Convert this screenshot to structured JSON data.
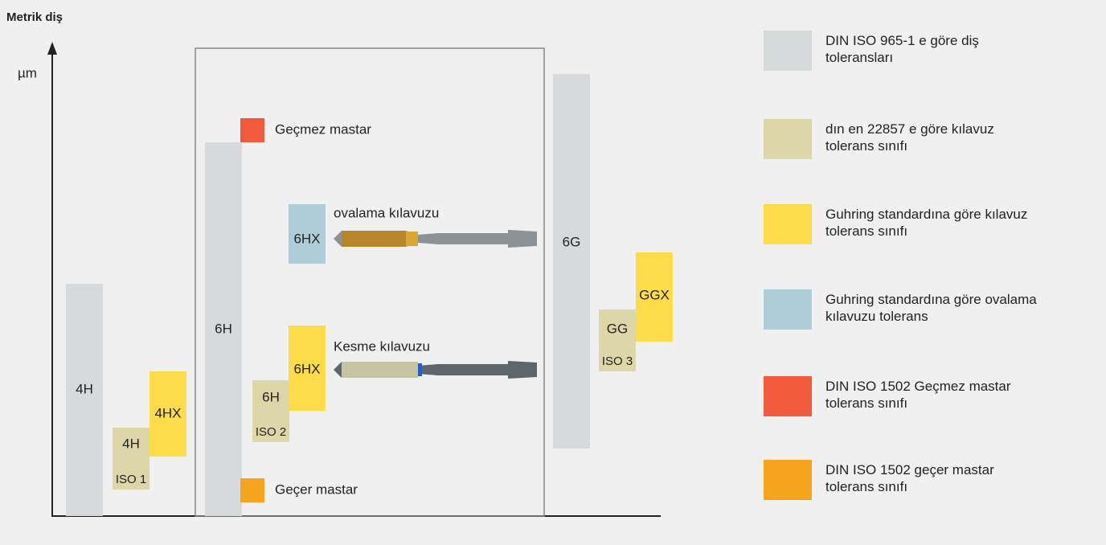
{
  "header": {
    "title": "Metrik diş"
  },
  "axis": {
    "unit": "µm"
  },
  "boxes": [
    {
      "label": "4H",
      "kind": "din"
    },
    {
      "label": "4H",
      "sublabel": "ISO 1",
      "kind": "tap"
    },
    {
      "label": "4HX",
      "kind": "guhring"
    },
    {
      "label": "6H",
      "kind": "din"
    },
    {
      "label": "6HX",
      "kind": "roll"
    },
    {
      "label": "6H",
      "sublabel": "ISO 2",
      "kind": "tap"
    },
    {
      "label": "6HX",
      "kind": "guhring"
    },
    {
      "label": "6G",
      "kind": "din"
    },
    {
      "label": "GG",
      "sublabel": "ISO 3",
      "kind": "tap"
    },
    {
      "label": "GGX",
      "kind": "guhring"
    }
  ],
  "gauges": [
    {
      "label": "Geçmez mastar",
      "kind": "nogo"
    },
    {
      "label": "Geçer mastar",
      "kind": "go"
    }
  ],
  "tools": [
    {
      "label": "ovalama kılavuzu"
    },
    {
      "label": "Kesme kılavuzu"
    }
  ],
  "legend": [
    {
      "kind": "din",
      "lines": [
        "DIN ISO 965-1 e göre diş",
        "toleransları"
      ]
    },
    {
      "kind": "tap",
      "lines": [
        "dın en 22857 e göre kılavuz",
        "tolerans sınıfı"
      ]
    },
    {
      "kind": "guhring",
      "lines": [
        "Guhring standardına göre kılavuz",
        "tolerans sınıfı"
      ]
    },
    {
      "kind": "roll",
      "lines": [
        "Guhring standardına göre ovalama",
        "kılavuzu tolerans"
      ]
    },
    {
      "kind": "nogo",
      "lines": [
        "DIN ISO 1502 Geçmez mastar",
        "tolerans sınıfı"
      ]
    },
    {
      "kind": "go",
      "lines": [
        "DIN ISO 1502 geçer mastar",
        "tolerans sınıfı"
      ]
    }
  ]
}
